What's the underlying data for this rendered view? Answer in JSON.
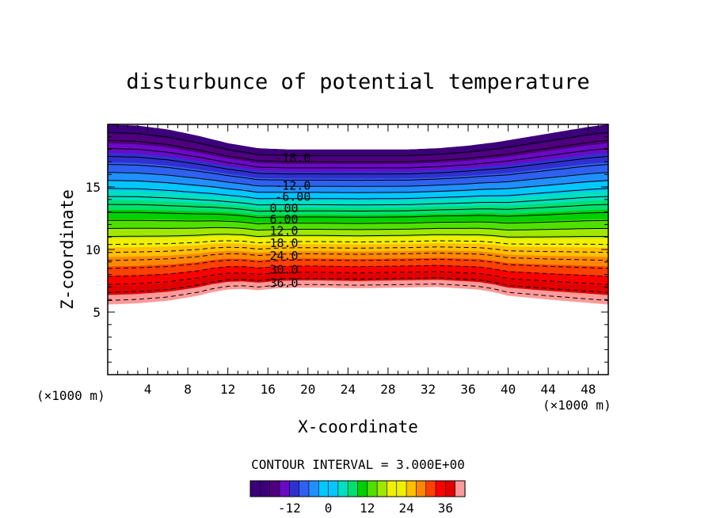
{
  "chart_data": {
    "type": "contour",
    "title": "disturbunce of potential temperature",
    "xlabel": "X-coordinate",
    "ylabel": "Z-coordinate",
    "x_unit_label": "(×1000 m)",
    "y_unit_label": "(×1000 m)",
    "xlim": [
      0,
      50
    ],
    "ylim": [
      0,
      20
    ],
    "x_ticks": [
      "4",
      "8",
      "12",
      "16",
      "20",
      "24",
      "28",
      "32",
      "36",
      "40",
      "44",
      "48"
    ],
    "y_ticks": [
      "5",
      "10",
      "15"
    ],
    "contour_interval_text": "CONTOUR INTERVAL = 3.000E+00",
    "contour_levels": [
      -24,
      -21,
      -18,
      -15,
      -12,
      -9,
      -6,
      -3,
      0,
      3,
      6,
      9,
      12,
      15,
      18,
      21,
      24,
      27,
      30,
      33,
      36,
      39
    ],
    "contour_labels": [
      {
        "text": "-18.0",
        "x": 18.5,
        "z": 17.3
      },
      {
        "text": "-12.0",
        "x": 18.5,
        "z": 15.1
      },
      {
        "text": "-6.00",
        "x": 18.5,
        "z": 14.2
      },
      {
        "text": "0.00",
        "x": 17.6,
        "z": 13.3
      },
      {
        "text": "6.00",
        "x": 17.6,
        "z": 12.4
      },
      {
        "text": "12.0",
        "x": 17.6,
        "z": 11.5
      },
      {
        "text": "18.0",
        "x": 17.6,
        "z": 10.5
      },
      {
        "text": "24.0",
        "x": 17.6,
        "z": 9.5
      },
      {
        "text": "30.0",
        "x": 17.6,
        "z": 8.4
      },
      {
        "text": "36.0",
        "x": 17.6,
        "z": 7.3
      }
    ],
    "top_boundary": {
      "x": [
        0,
        3,
        6,
        9,
        12,
        15,
        18,
        21,
        24,
        27,
        30,
        33,
        36,
        39,
        42,
        45,
        48,
        50
      ],
      "z": [
        20,
        19.9,
        19.6,
        19.1,
        18.5,
        18.1,
        18.0,
        18.0,
        18.0,
        18.0,
        18.0,
        18.1,
        18.3,
        18.6,
        19.0,
        19.4,
        19.8,
        20
      ]
    },
    "bottom_boundary": {
      "x": [
        0,
        3,
        6,
        9,
        10.5,
        12,
        13.5,
        15,
        17,
        19,
        21,
        25,
        29,
        33,
        35,
        37,
        38.5,
        40,
        44,
        47,
        50
      ],
      "z": [
        5.6,
        5.7,
        5.9,
        6.3,
        6.6,
        6.8,
        6.85,
        6.75,
        6.9,
        6.95,
        6.95,
        6.9,
        6.95,
        7.0,
        6.9,
        6.8,
        6.6,
        6.3,
        6.0,
        5.8,
        5.6
      ]
    },
    "colorbar": {
      "min": -24,
      "max": 42,
      "tick_labels": [
        "-12",
        "0",
        "12",
        "24",
        "36"
      ],
      "tick_values": [
        -12,
        0,
        12,
        24,
        36
      ]
    },
    "colors": {
      "ramp": [
        "#3c007a",
        "#50007f",
        "#6a0ac6",
        "#3030d0",
        "#3060f0",
        "#2090ff",
        "#00c8ff",
        "#00e0c0",
        "#00e070",
        "#00d000",
        "#50e000",
        "#a0e800",
        "#f0f000",
        "#ffc000",
        "#ff8800",
        "#ff4000",
        "#ff0000",
        "#e00000",
        "#ff9a9a"
      ],
      "negative_line_style": "dashed",
      "positive_line_style": "solid"
    }
  }
}
